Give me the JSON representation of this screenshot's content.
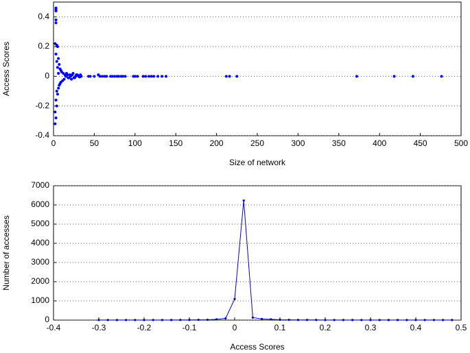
{
  "chart_data": [
    {
      "type": "scatter",
      "xlabel": "Size of network",
      "ylabel": "Access Scores",
      "x": [
        3,
        3,
        3,
        3,
        3,
        2,
        4,
        5,
        3,
        6,
        4,
        7,
        5,
        8,
        9,
        10,
        6,
        12,
        2,
        3,
        2,
        4,
        3,
        5,
        4,
        6,
        7,
        8,
        9,
        11,
        13,
        14,
        16,
        18,
        20,
        22,
        24,
        26,
        28,
        30,
        32,
        34,
        15,
        17,
        19,
        21,
        23,
        25,
        27,
        29,
        31,
        33,
        43,
        45,
        50,
        55,
        57,
        60,
        63,
        65,
        70,
        72,
        75,
        78,
        80,
        83,
        85,
        88,
        98,
        100,
        103,
        110,
        113,
        117,
        120,
        123,
        128,
        133,
        138,
        212,
        216,
        225,
        372,
        418,
        441,
        476
      ],
      "values": [
        0.46,
        0.45,
        0.44,
        0.38,
        0.36,
        0.22,
        0.21,
        0.2,
        0.15,
        0.12,
        0.1,
        0.08,
        0.06,
        0.05,
        0.04,
        0.03,
        0.02,
        0.02,
        -0.32,
        -0.28,
        -0.24,
        -0.2,
        -0.16,
        -0.12,
        -0.1,
        -0.08,
        -0.06,
        -0.05,
        -0.04,
        -0.03,
        -0.02,
        0.01,
        0.02,
        -0.01,
        0.01,
        -0.02,
        0.02,
        -0.01,
        0.01,
        0.005,
        -0.005,
        0,
        0,
        0.01,
        -0.01,
        0,
        0.01,
        -0.01,
        0,
        0.01,
        0,
        0.01,
        0,
        0,
        0,
        0.01,
        0,
        0,
        0,
        0,
        0,
        0,
        0,
        0,
        0,
        0,
        0,
        0,
        0,
        0,
        0,
        0,
        0,
        0,
        0,
        0,
        0,
        0,
        0,
        0,
        0,
        0,
        0,
        0,
        0,
        0
      ],
      "color": "#0000ff",
      "xlim": [
        0,
        500
      ],
      "xticks": [
        0,
        50,
        100,
        150,
        200,
        250,
        300,
        350,
        400,
        450,
        500
      ],
      "ylim": [
        -0.4,
        0.5
      ],
      "yticks": [
        -0.4,
        -0.2,
        0,
        0.2,
        0.4
      ],
      "grid": true
    },
    {
      "type": "line",
      "xlabel": "Access Scores",
      "ylabel": "Number of accesses",
      "x": [
        -0.3,
        -0.28,
        -0.26,
        -0.24,
        -0.22,
        -0.2,
        -0.18,
        -0.16,
        -0.14,
        -0.12,
        -0.1,
        -0.08,
        -0.06,
        -0.04,
        -0.02,
        0,
        0.02,
        0.04,
        0.06,
        0.08,
        0.1,
        0.12,
        0.14,
        0.16,
        0.18,
        0.2,
        0.22,
        0.24,
        0.26,
        0.28,
        0.3,
        0.32,
        0.34,
        0.36,
        0.38,
        0.4,
        0.42,
        0.44,
        0.46,
        0.48
      ],
      "values": [
        5,
        5,
        5,
        5,
        5,
        5,
        5,
        5,
        5,
        10,
        10,
        15,
        20,
        40,
        90,
        1100,
        6230,
        130,
        60,
        40,
        20,
        15,
        10,
        10,
        10,
        5,
        5,
        5,
        5,
        5,
        5,
        5,
        5,
        5,
        5,
        5,
        5,
        5,
        5,
        5
      ],
      "color": "#0000cc",
      "xlim": [
        -0.4,
        0.5
      ],
      "xticks": [
        -0.4,
        -0.3,
        -0.2,
        -0.1,
        0,
        0.1,
        0.2,
        0.3,
        0.4,
        0.5
      ],
      "ylim": [
        0,
        7000
      ],
      "yticks": [
        0,
        1000,
        2000,
        3000,
        4000,
        5000,
        6000,
        7000
      ],
      "grid": true
    }
  ]
}
